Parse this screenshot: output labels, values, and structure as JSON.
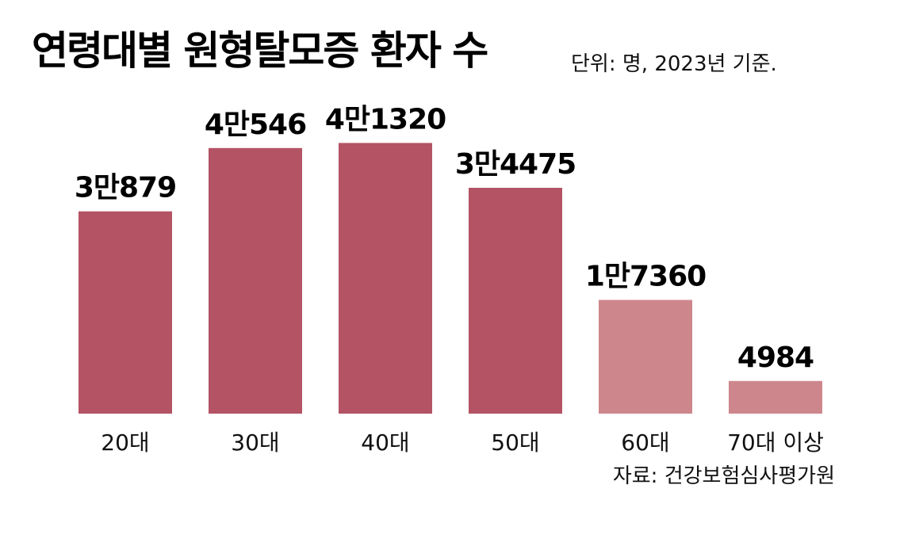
{
  "title": "연령대별 원형탈모증 환자 수",
  "unit_note": "단위: 명, 2023년 기준.",
  "source": "자료: 건강보험심사평가원",
  "colors": {
    "primary": "#b45364",
    "light": "#cd878c"
  },
  "chart_data": {
    "type": "bar",
    "title": "연령대별 원형탈모증 환자 수",
    "xlabel": "",
    "ylabel": "",
    "categories": [
      "20대",
      "30대",
      "40대",
      "50대",
      "60대",
      "70대 이상"
    ],
    "values": [
      30879,
      40546,
      41320,
      34475,
      17360,
      4984
    ],
    "value_labels": [
      "3만879",
      "4만546",
      "4만1320",
      "3만4475",
      "1만7360",
      "4984"
    ],
    "bar_color_keys": [
      "primary",
      "primary",
      "primary",
      "primary",
      "light",
      "light"
    ],
    "ylim": [
      0,
      45000
    ],
    "grid": false,
    "legend": "none"
  }
}
